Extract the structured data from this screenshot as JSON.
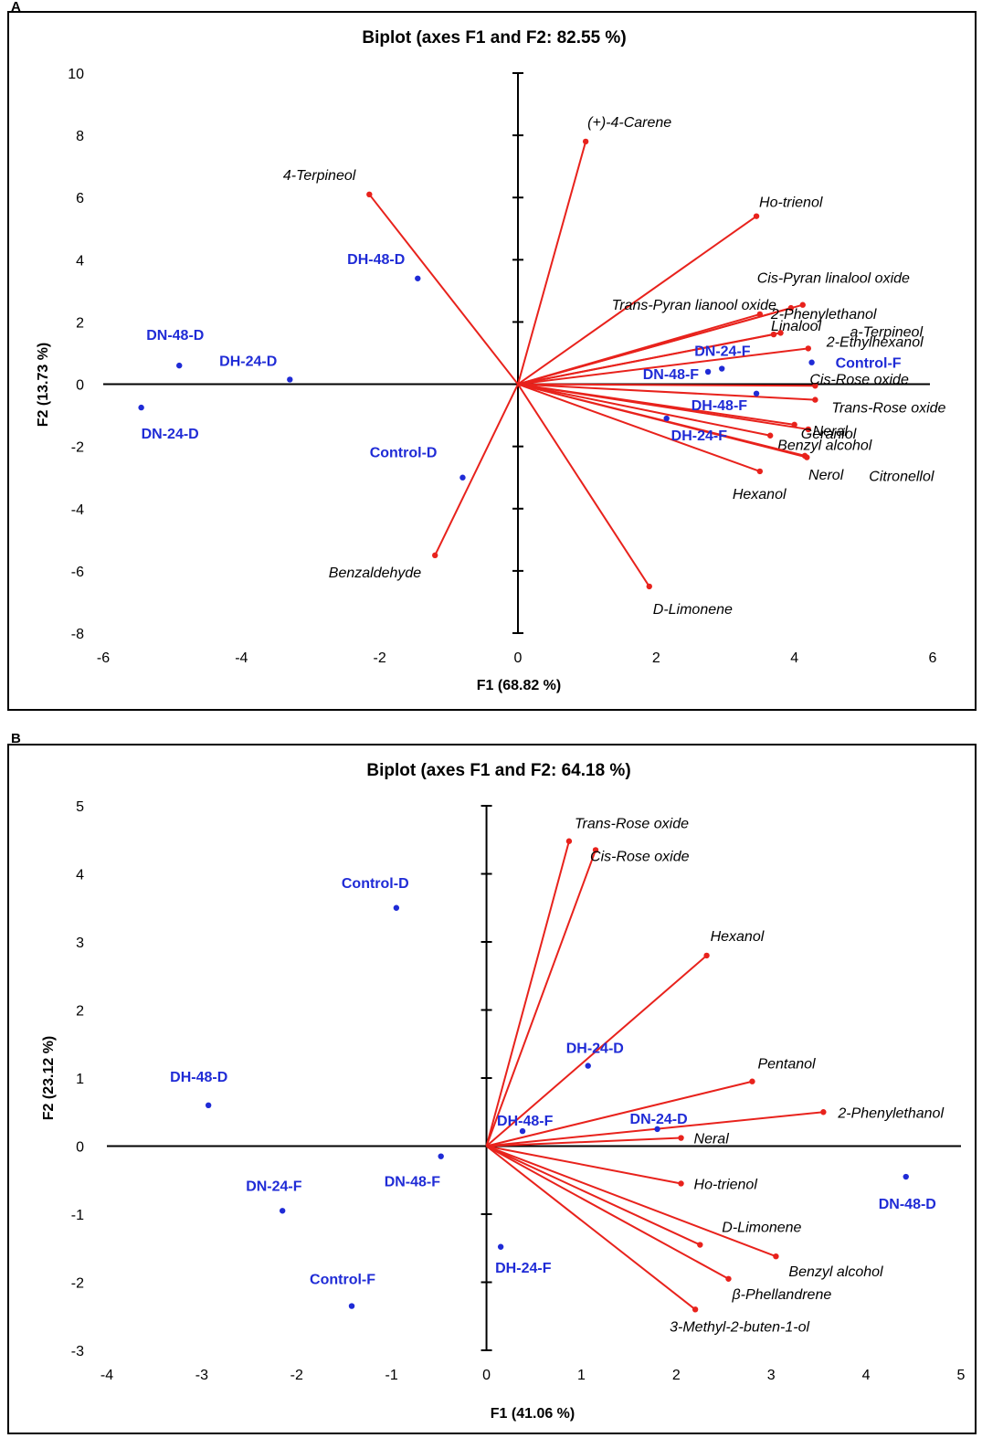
{
  "panels": [
    {
      "letter": "A"
    },
    {
      "letter": "B"
    }
  ],
  "chart_data": [
    {
      "type": "scatter",
      "title": "Biplot (axes F1 and F2: 82.55 %)",
      "xlabel": "F1 (68.82 %)",
      "ylabel": "F2 (13.73 %)",
      "xlim": [
        -6,
        6
      ],
      "ylim": [
        -8,
        10
      ],
      "xticks": [
        -6,
        -4,
        -2,
        0,
        2,
        4,
        6
      ],
      "yticks": [
        -8,
        -6,
        -4,
        -2,
        0,
        2,
        4,
        6,
        8,
        10
      ],
      "variables": [
        {
          "name": "(+)-4-Carene",
          "x": 0.98,
          "y": 7.8
        },
        {
          "name": "4-Terpineol",
          "x": -2.15,
          "y": 6.1
        },
        {
          "name": "Ho-trienol",
          "x": 3.45,
          "y": 5.4
        },
        {
          "name": "Cis-Pyran linalool oxide",
          "x": 4.12,
          "y": 2.55
        },
        {
          "name": "Trans-Pyran lianool oxide",
          "x": 3.95,
          "y": 2.45
        },
        {
          "name": "2-Phenylethanol",
          "x": 3.5,
          "y": 2.25
        },
        {
          "name": "Linalool",
          "x": 3.7,
          "y": 1.6
        },
        {
          "name": "a-Terpineol",
          "x": 3.8,
          "y": 1.65
        },
        {
          "name": "2-Ethylhexanol",
          "x": 4.2,
          "y": 1.15
        },
        {
          "name": "Cis-Rose oxide",
          "x": 4.3,
          "y": -0.05
        },
        {
          "name": "Trans-Rose oxide",
          "x": 4.3,
          "y": -0.5
        },
        {
          "name": "Neral",
          "x": 4.0,
          "y": -1.3
        },
        {
          "name": "Geraniol",
          "x": 4.2,
          "y": -1.45
        },
        {
          "name": "Benzyl alcohol",
          "x": 3.65,
          "y": -1.65
        },
        {
          "name": "Nerol",
          "x": 4.15,
          "y": -2.3
        },
        {
          "name": "Citronellol",
          "x": 4.18,
          "y": -2.35
        },
        {
          "name": "Hexanol",
          "x": 3.5,
          "y": -2.8
        },
        {
          "name": "D-Limonene",
          "x": 1.9,
          "y": -6.5
        },
        {
          "name": "Benzaldehyde",
          "x": -1.2,
          "y": -5.5
        }
      ],
      "observations": [
        {
          "name": "DH-48-D",
          "x": -1.45,
          "y": 3.4
        },
        {
          "name": "DN-48-D",
          "x": -4.9,
          "y": 0.6
        },
        {
          "name": "DH-24-D",
          "x": -3.3,
          "y": 0.15
        },
        {
          "name": "DN-24-D",
          "x": -5.45,
          "y": -0.75
        },
        {
          "name": "Control-D",
          "x": -0.8,
          "y": -3.0
        },
        {
          "name": "DN-24-F",
          "x": 2.95,
          "y": 0.5
        },
        {
          "name": "DN-48-F",
          "x": 2.75,
          "y": 0.4
        },
        {
          "name": "Control-F",
          "x": 4.25,
          "y": 0.7
        },
        {
          "name": "DH-48-F",
          "x": 3.45,
          "y": -0.3
        },
        {
          "name": "DH-24-F",
          "x": 2.15,
          "y": -1.1
        }
      ]
    },
    {
      "type": "scatter",
      "title": "Biplot (axes F1 and F2: 64.18 %)",
      "xlabel": "F1 (41.06 %)",
      "ylabel": "F2 (23.12 %)",
      "xlim": [
        -4,
        5
      ],
      "ylim": [
        -3,
        5
      ],
      "xticks": [
        -4,
        -3,
        -2,
        -1,
        0,
        1,
        2,
        3,
        4,
        5
      ],
      "yticks": [
        -3,
        -2,
        -1,
        0,
        1,
        2,
        3,
        4,
        5
      ],
      "variables": [
        {
          "name": "Trans-Rose oxide",
          "x": 0.87,
          "y": 4.48
        },
        {
          "name": "Cis-Rose oxide",
          "x": 1.15,
          "y": 4.35
        },
        {
          "name": "Hexanol",
          "x": 2.32,
          "y": 2.8
        },
        {
          "name": "Pentanol",
          "x": 2.8,
          "y": 0.95
        },
        {
          "name": "2-Phenylethanol",
          "x": 3.55,
          "y": 0.5
        },
        {
          "name": "Neral",
          "x": 2.05,
          "y": 0.12
        },
        {
          "name": "Ho-trienol",
          "x": 2.05,
          "y": -0.55
        },
        {
          "name": "D-Limonene",
          "x": 2.25,
          "y": -1.45
        },
        {
          "name": "Benzyl alcohol",
          "x": 3.05,
          "y": -1.62
        },
        {
          "name": "β-Phellandrene",
          "x": 2.55,
          "y": -1.95
        },
        {
          "name": "3-Methyl-2-buten-1-ol",
          "x": 2.2,
          "y": -2.4
        }
      ],
      "observations": [
        {
          "name": "Control-D",
          "x": -0.95,
          "y": 3.5
        },
        {
          "name": "DH-24-D",
          "x": 1.07,
          "y": 1.18
        },
        {
          "name": "DH-48-D",
          "x": -2.93,
          "y": 0.6
        },
        {
          "name": "DH-48-F",
          "x": 0.38,
          "y": 0.22
        },
        {
          "name": "DN-24-D",
          "x": 1.8,
          "y": 0.25
        },
        {
          "name": "DN-48-F",
          "x": -0.48,
          "y": -0.15
        },
        {
          "name": "DN-24-F",
          "x": -2.15,
          "y": -0.95
        },
        {
          "name": "DN-48-D",
          "x": 4.42,
          "y": -0.45
        },
        {
          "name": "DH-24-F",
          "x": 0.15,
          "y": -1.48
        },
        {
          "name": "Control-F",
          "x": -1.42,
          "y": -2.35
        }
      ]
    }
  ],
  "colors": {
    "vector": "#e8221c",
    "observation": "#1f2bd6",
    "axis": "#000000"
  }
}
